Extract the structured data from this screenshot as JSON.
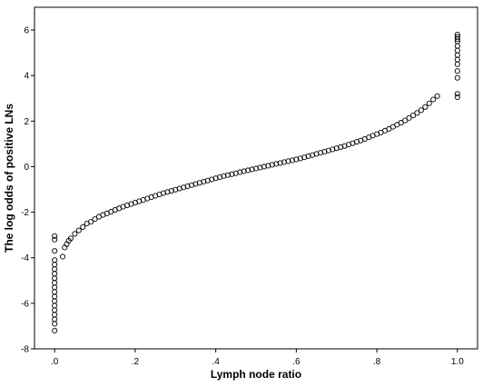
{
  "chart_data": {
    "type": "scatter",
    "title": "",
    "xlabel": "Lymph node ratio",
    "ylabel": "The log odds of positive LNs",
    "xlim": [
      -0.05,
      1.05
    ],
    "ylim": [
      -8,
      7
    ],
    "x_ticks": [
      {
        "value": 0.0,
        "label": ".0"
      },
      {
        "value": 0.2,
        "label": ".2"
      },
      {
        "value": 0.4,
        "label": ".4"
      },
      {
        "value": 0.6,
        "label": ".6"
      },
      {
        "value": 0.8,
        "label": ".8"
      },
      {
        "value": 1.0,
        "label": "1.0"
      }
    ],
    "y_ticks": [
      {
        "value": -8,
        "label": "-8"
      },
      {
        "value": -6,
        "label": "-6"
      },
      {
        "value": -4,
        "label": "-4"
      },
      {
        "value": -2,
        "label": "-2"
      },
      {
        "value": 0,
        "label": "0"
      },
      {
        "value": 2,
        "label": "2"
      },
      {
        "value": 4,
        "label": "4"
      },
      {
        "value": 6,
        "label": "6"
      }
    ],
    "grid": false,
    "legend": "none",
    "marker": "open-circle",
    "marker_color": "#000000",
    "series": [
      {
        "points": [
          [
            0.0,
            -7.2
          ],
          [
            0.0,
            -6.9
          ],
          [
            0.0,
            -6.7
          ],
          [
            0.0,
            -6.5
          ],
          [
            0.0,
            -6.3
          ],
          [
            0.0,
            -6.1
          ],
          [
            0.0,
            -5.9
          ],
          [
            0.0,
            -5.7
          ],
          [
            0.0,
            -5.5
          ],
          [
            0.0,
            -5.3
          ],
          [
            0.0,
            -5.1
          ],
          [
            0.0,
            -4.9
          ],
          [
            0.0,
            -4.7
          ],
          [
            0.0,
            -4.5
          ],
          [
            0.0,
            -4.3
          ],
          [
            0.0,
            -4.1
          ],
          [
            0.0,
            -3.7
          ],
          [
            0.0,
            -3.2
          ],
          [
            0.0,
            -3.05
          ],
          [
            0.02,
            -3.95
          ],
          [
            0.025,
            -3.55
          ],
          [
            0.03,
            -3.4
          ],
          [
            0.035,
            -3.25
          ],
          [
            0.04,
            -3.15
          ],
          [
            0.05,
            -2.95
          ],
          [
            0.06,
            -2.8
          ],
          [
            0.07,
            -2.65
          ],
          [
            0.08,
            -2.5
          ],
          [
            0.09,
            -2.42
          ],
          [
            0.1,
            -2.3
          ],
          [
            0.11,
            -2.2
          ],
          [
            0.12,
            -2.12
          ],
          [
            0.13,
            -2.05
          ],
          [
            0.14,
            -1.98
          ],
          [
            0.15,
            -1.9
          ],
          [
            0.16,
            -1.83
          ],
          [
            0.17,
            -1.76
          ],
          [
            0.18,
            -1.7
          ],
          [
            0.19,
            -1.64
          ],
          [
            0.2,
            -1.58
          ],
          [
            0.21,
            -1.52
          ],
          [
            0.22,
            -1.46
          ],
          [
            0.23,
            -1.4
          ],
          [
            0.24,
            -1.34
          ],
          [
            0.25,
            -1.28
          ],
          [
            0.26,
            -1.22
          ],
          [
            0.27,
            -1.16
          ],
          [
            0.28,
            -1.11
          ],
          [
            0.29,
            -1.06
          ],
          [
            0.3,
            -1.01
          ],
          [
            0.31,
            -0.96
          ],
          [
            0.32,
            -0.91
          ],
          [
            0.33,
            -0.86
          ],
          [
            0.34,
            -0.81
          ],
          [
            0.35,
            -0.76
          ],
          [
            0.36,
            -0.71
          ],
          [
            0.37,
            -0.66
          ],
          [
            0.38,
            -0.61
          ],
          [
            0.39,
            -0.56
          ],
          [
            0.4,
            -0.51
          ],
          [
            0.41,
            -0.46
          ],
          [
            0.42,
            -0.41
          ],
          [
            0.43,
            -0.37
          ],
          [
            0.44,
            -0.33
          ],
          [
            0.45,
            -0.29
          ],
          [
            0.46,
            -0.24
          ],
          [
            0.47,
            -0.2
          ],
          [
            0.48,
            -0.16
          ],
          [
            0.49,
            -0.12
          ],
          [
            0.5,
            -0.08
          ],
          [
            0.51,
            -0.04
          ],
          [
            0.52,
            0.0
          ],
          [
            0.53,
            0.04
          ],
          [
            0.54,
            0.08
          ],
          [
            0.55,
            0.12
          ],
          [
            0.56,
            0.16
          ],
          [
            0.57,
            0.2
          ],
          [
            0.58,
            0.24
          ],
          [
            0.59,
            0.28
          ],
          [
            0.6,
            0.32
          ],
          [
            0.61,
            0.36
          ],
          [
            0.62,
            0.41
          ],
          [
            0.63,
            0.46
          ],
          [
            0.64,
            0.51
          ],
          [
            0.65,
            0.56
          ],
          [
            0.66,
            0.61
          ],
          [
            0.67,
            0.66
          ],
          [
            0.68,
            0.71
          ],
          [
            0.69,
            0.76
          ],
          [
            0.7,
            0.81
          ],
          [
            0.71,
            0.86
          ],
          [
            0.72,
            0.91
          ],
          [
            0.73,
            0.97
          ],
          [
            0.74,
            1.03
          ],
          [
            0.75,
            1.09
          ],
          [
            0.76,
            1.15
          ],
          [
            0.77,
            1.22
          ],
          [
            0.78,
            1.29
          ],
          [
            0.79,
            1.36
          ],
          [
            0.8,
            1.43
          ],
          [
            0.81,
            1.5
          ],
          [
            0.82,
            1.58
          ],
          [
            0.83,
            1.66
          ],
          [
            0.84,
            1.75
          ],
          [
            0.85,
            1.84
          ],
          [
            0.86,
            1.93
          ],
          [
            0.87,
            2.03
          ],
          [
            0.88,
            2.14
          ],
          [
            0.89,
            2.25
          ],
          [
            0.9,
            2.36
          ],
          [
            0.91,
            2.48
          ],
          [
            0.92,
            2.62
          ],
          [
            0.93,
            2.78
          ],
          [
            0.94,
            2.95
          ],
          [
            0.95,
            3.1
          ],
          [
            1.0,
            3.05
          ],
          [
            1.0,
            3.2
          ],
          [
            1.0,
            3.9
          ],
          [
            1.0,
            4.2
          ],
          [
            1.0,
            4.5
          ],
          [
            1.0,
            4.7
          ],
          [
            1.0,
            4.9
          ],
          [
            1.0,
            5.1
          ],
          [
            1.0,
            5.3
          ],
          [
            1.0,
            5.5
          ],
          [
            1.0,
            5.6
          ],
          [
            1.0,
            5.7
          ],
          [
            1.0,
            5.8
          ]
        ]
      }
    ]
  }
}
